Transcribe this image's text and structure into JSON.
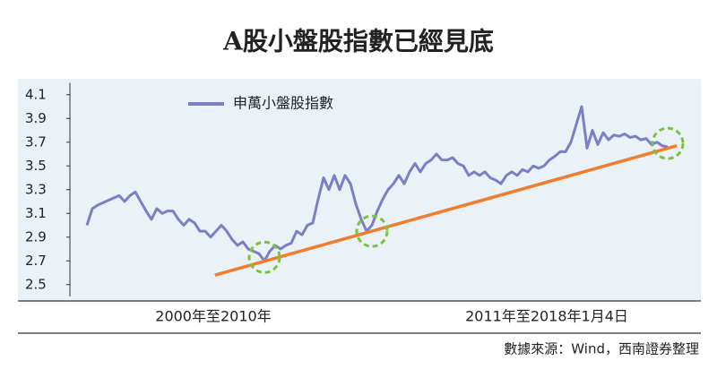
{
  "chart_data": {
    "type": "line",
    "title": "A股小盤股指數已經見底",
    "source": "數據來源：Wind，西南證券整理",
    "x_range_labels": [
      "2000年至2010年",
      "2011年至2018年1月4日"
    ],
    "series": [
      {
        "name": "申萬小盤股指數",
        "color": "#7b7fc4",
        "values": [
          3.0,
          3.14,
          3.17,
          3.19,
          3.21,
          3.23,
          3.25,
          3.2,
          3.25,
          3.28,
          3.2,
          3.12,
          3.05,
          3.14,
          3.1,
          3.12,
          3.12,
          3.05,
          3.0,
          3.05,
          3.02,
          2.95,
          2.95,
          2.9,
          2.95,
          3.0,
          2.95,
          2.88,
          2.83,
          2.86,
          2.8,
          2.78,
          2.76,
          2.7,
          2.78,
          2.83,
          2.8,
          2.83,
          2.85,
          2.95,
          2.92,
          3.0,
          3.02,
          3.22,
          3.4,
          3.3,
          3.42,
          3.3,
          3.42,
          3.35,
          3.18,
          3.05,
          2.95,
          3.0,
          3.12,
          3.22,
          3.3,
          3.35,
          3.42,
          3.35,
          3.45,
          3.52,
          3.45,
          3.52,
          3.55,
          3.6,
          3.55,
          3.55,
          3.57,
          3.52,
          3.5,
          3.42,
          3.45,
          3.42,
          3.45,
          3.4,
          3.38,
          3.35,
          3.42,
          3.45,
          3.42,
          3.47,
          3.45,
          3.5,
          3.48,
          3.5,
          3.55,
          3.58,
          3.62,
          3.62,
          3.7,
          3.85,
          4.0,
          3.65,
          3.8,
          3.68,
          3.78,
          3.72,
          3.76,
          3.75,
          3.77,
          3.74,
          3.75,
          3.72,
          3.73,
          3.68,
          3.7,
          3.67,
          3.66
        ]
      }
    ],
    "trend_line": {
      "color": "#f07d2b",
      "x": [
        23.8,
        109.7
      ],
      "values": [
        2.58,
        3.67
      ]
    },
    "highlights": {
      "color": "#7dc242",
      "x": [
        33,
        53,
        108
      ],
      "values": [
        2.73,
        2.95,
        3.69
      ]
    },
    "ylim": [
      2.4,
      4.2
    ],
    "yticks": [
      2.5,
      2.7,
      2.9,
      3.1,
      3.3,
      3.5,
      3.7,
      3.9,
      4.1
    ],
    "legend": "upper left"
  }
}
